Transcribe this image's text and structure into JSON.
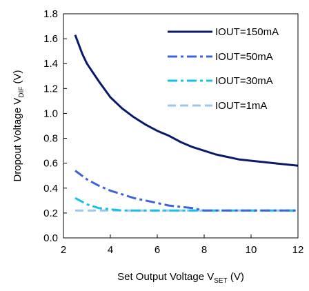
{
  "chart_data": {
    "type": "line",
    "xlim": [
      2,
      12
    ],
    "ylim": [
      0.0,
      1.8
    ],
    "x_ticks": [
      2,
      4,
      6,
      8,
      10,
      12
    ],
    "y_ticks": [
      0.0,
      0.2,
      0.4,
      0.6,
      0.8,
      1.0,
      1.2,
      1.4,
      1.6,
      1.8
    ],
    "x_tick_labels": [
      "2",
      "4",
      "6",
      "8",
      "10",
      "12"
    ],
    "y_tick_labels": [
      "0.0",
      "0.2",
      "0.4",
      "0.6",
      "0.8",
      "1.0",
      "1.2",
      "1.4",
      "1.6",
      "1.8"
    ],
    "xlabel": {
      "main": "Set Output Voltage V",
      "sub": "SET",
      "suffix": " (V)"
    },
    "ylabel": {
      "main": "Dropout Voltage V",
      "sub": "DIF",
      "suffix": " (V)"
    },
    "grid": false,
    "legend_position": "top-right",
    "series": [
      {
        "name": "IOUT=150mA",
        "color": "#0a1a6b",
        "dash": "solid",
        "x": [
          2.5,
          2.8,
          3.0,
          3.5,
          4.0,
          4.5,
          5.0,
          5.5,
          6.0,
          6.5,
          7.0,
          7.5,
          8.0,
          8.5,
          9.0,
          9.5,
          10.0,
          10.5,
          11.0,
          11.5,
          12.0
        ],
        "y": [
          1.63,
          1.48,
          1.4,
          1.26,
          1.13,
          1.04,
          0.97,
          0.91,
          0.86,
          0.82,
          0.77,
          0.73,
          0.7,
          0.67,
          0.65,
          0.63,
          0.62,
          0.61,
          0.6,
          0.59,
          0.58
        ]
      },
      {
        "name": "IOUT=50mA",
        "color": "#3c64d8",
        "dash": "dashdot",
        "x": [
          2.5,
          3.0,
          3.5,
          4.0,
          4.5,
          5.0,
          5.5,
          6.0,
          6.5,
          7.0,
          7.5,
          8.0,
          8.5,
          9.0,
          10.0,
          11.0,
          12.0
        ],
        "y": [
          0.54,
          0.47,
          0.42,
          0.38,
          0.35,
          0.32,
          0.3,
          0.28,
          0.26,
          0.25,
          0.24,
          0.22,
          0.22,
          0.22,
          0.22,
          0.22,
          0.22
        ]
      },
      {
        "name": "IOUT=30mA",
        "color": "#12c2e8",
        "dash": "dashdot",
        "x": [
          2.5,
          3.0,
          3.5,
          4.0,
          4.5,
          5.0,
          6.0,
          8.0,
          10.0,
          12.0
        ],
        "y": [
          0.32,
          0.27,
          0.24,
          0.23,
          0.22,
          0.22,
          0.22,
          0.22,
          0.22,
          0.22
        ]
      },
      {
        "name": "IOUT=1mA",
        "color": "#9cc6ec",
        "dash": "dash",
        "x": [
          2.5,
          4.0,
          6.0,
          8.0,
          10.0,
          12.0
        ],
        "y": [
          0.22,
          0.22,
          0.22,
          0.22,
          0.22,
          0.22
        ]
      }
    ]
  }
}
